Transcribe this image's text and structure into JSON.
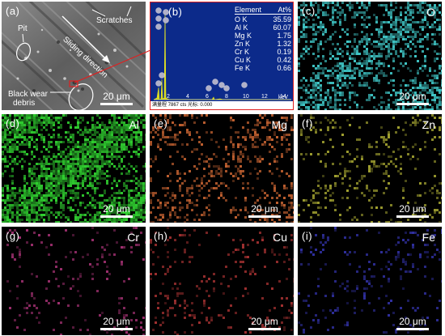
{
  "panels": {
    "a": {
      "label": "(a)",
      "annotations": {
        "pit": "Pit",
        "scratches": "Scratches",
        "sliding": "Sliding direction",
        "debris_line1": "Black wear",
        "debris_line2": "debris"
      },
      "scale": "20 μm"
    },
    "b": {
      "label": "(b)",
      "table_header_element": "Element",
      "table_header_value": "At%",
      "table_rows": [
        {
          "element": "O K",
          "value": "35.59"
        },
        {
          "element": "Al K",
          "value": "60.07"
        },
        {
          "element": "Mg K",
          "value": "1.75"
        },
        {
          "element": "Zn K",
          "value": "1.32"
        },
        {
          "element": "Cr K",
          "value": "0.19"
        },
        {
          "element": "Cu K",
          "value": "0.42"
        },
        {
          "element": "Fe K",
          "value": "0.66"
        }
      ],
      "x_ticks": [
        "2",
        "4",
        "6",
        "8",
        "10",
        "12",
        "14"
      ],
      "x_unit": "keV",
      "footer": "满量程 7867 cts 光标: 0.000"
    },
    "c": {
      "label": "(c)",
      "element": "O",
      "scale": "20 μm",
      "color": "#40c8c8"
    },
    "d": {
      "label": "(d)",
      "element": "Al",
      "scale": "20 μm",
      "color": "#30d030"
    },
    "e": {
      "label": "(e)",
      "element": "Mg",
      "scale": "20 μm",
      "color": "#c06030"
    },
    "f": {
      "label": "(f)",
      "element": "Zn",
      "scale": "20 μm",
      "color": "#a0a030"
    },
    "g": {
      "label": "(g)",
      "element": "Cr",
      "scale": "20 μm",
      "color": "#a03070"
    },
    "h": {
      "label": "(h)",
      "element": "Cu",
      "scale": "20 μm",
      "color": "#a03030"
    },
    "i": {
      "label": "(i)",
      "element": "Fe",
      "scale": "20 μm",
      "color": "#3030a0"
    }
  }
}
